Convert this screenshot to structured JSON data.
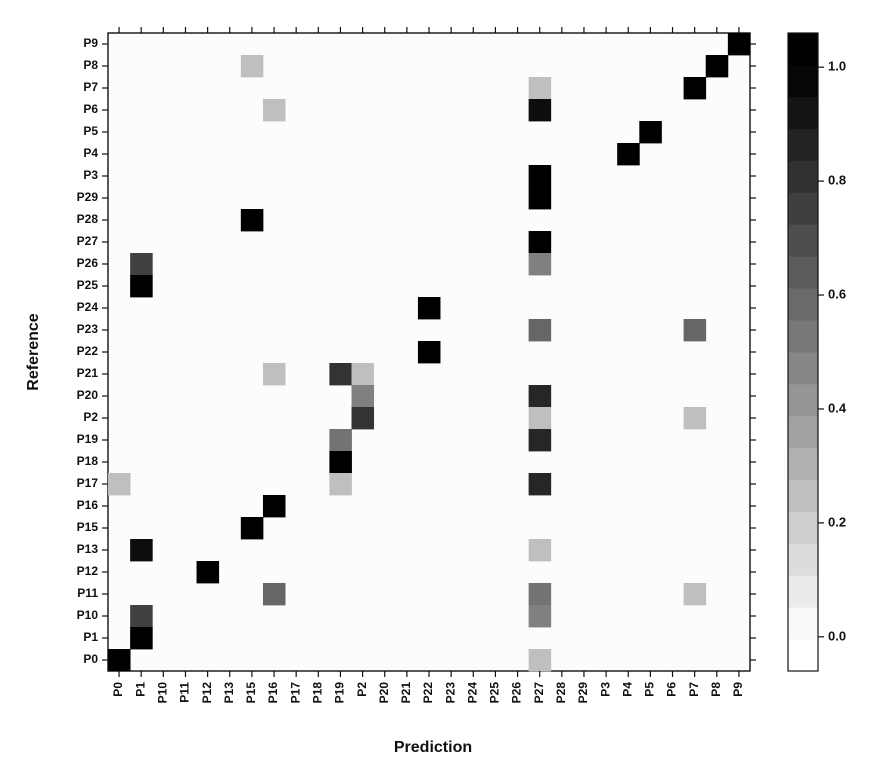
{
  "chart_data": {
    "type": "heatmap",
    "xlabel": "Prediction",
    "ylabel": "Reference",
    "x_categories": [
      "P0",
      "P1",
      "P10",
      "P11",
      "P12",
      "P13",
      "P15",
      "P16",
      "P17",
      "P18",
      "P19",
      "P2",
      "P20",
      "P21",
      "P22",
      "P23",
      "P24",
      "P25",
      "P26",
      "P27",
      "P28",
      "P29",
      "P3",
      "P4",
      "P5",
      "P6",
      "P7",
      "P8",
      "P9"
    ],
    "y_categories": [
      "P0",
      "P1",
      "P10",
      "P11",
      "P12",
      "P13",
      "P15",
      "P16",
      "P17",
      "P18",
      "P19",
      "P2",
      "P20",
      "P21",
      "P22",
      "P23",
      "P24",
      "P25",
      "P26",
      "P27",
      "P28",
      "P29",
      "P3",
      "P4",
      "P5",
      "P6",
      "P7",
      "P8",
      "P9"
    ],
    "colorbar": {
      "range": [
        -0.06,
        1.06
      ],
      "ticks": [
        0.0,
        0.2,
        0.4,
        0.6,
        0.8,
        1.0
      ],
      "tick_labels": [
        "0.0",
        "0.2",
        "0.4",
        "0.6",
        "0.8",
        "1.0"
      ],
      "low_color": "#ffffff",
      "high_color": "#000000"
    },
    "cells": [
      {
        "reference": "P9",
        "prediction": "P9",
        "value": 1.0
      },
      {
        "reference": "P8",
        "prediction": "P15",
        "value": 0.25
      },
      {
        "reference": "P8",
        "prediction": "P8",
        "value": 1.0
      },
      {
        "reference": "P7",
        "prediction": "P27",
        "value": 0.25
      },
      {
        "reference": "P7",
        "prediction": "P7",
        "value": 1.0
      },
      {
        "reference": "P6",
        "prediction": "P16",
        "value": 0.25
      },
      {
        "reference": "P6",
        "prediction": "P27",
        "value": 0.95
      },
      {
        "reference": "P5",
        "prediction": "P5",
        "value": 1.0
      },
      {
        "reference": "P4",
        "prediction": "P4",
        "value": 1.0
      },
      {
        "reference": "P3",
        "prediction": "P27",
        "value": 1.0
      },
      {
        "reference": "P29",
        "prediction": "P27",
        "value": 1.0
      },
      {
        "reference": "P28",
        "prediction": "P15",
        "value": 1.0
      },
      {
        "reference": "P27",
        "prediction": "P27",
        "value": 1.0
      },
      {
        "reference": "P26",
        "prediction": "P1",
        "value": 0.75
      },
      {
        "reference": "P26",
        "prediction": "P27",
        "value": 0.5
      },
      {
        "reference": "P25",
        "prediction": "P1",
        "value": 1.0
      },
      {
        "reference": "P24",
        "prediction": "P22",
        "value": 1.0
      },
      {
        "reference": "P23",
        "prediction": "P27",
        "value": 0.6
      },
      {
        "reference": "P23",
        "prediction": "P7",
        "value": 0.6
      },
      {
        "reference": "P22",
        "prediction": "P22",
        "value": 1.0
      },
      {
        "reference": "P21",
        "prediction": "P16",
        "value": 0.25
      },
      {
        "reference": "P21",
        "prediction": "P19",
        "value": 0.8
      },
      {
        "reference": "P21",
        "prediction": "P2",
        "value": 0.25
      },
      {
        "reference": "P20",
        "prediction": "P2",
        "value": 0.5
      },
      {
        "reference": "P20",
        "prediction": "P27",
        "value": 0.85
      },
      {
        "reference": "P2",
        "prediction": "P2",
        "value": 0.8
      },
      {
        "reference": "P2",
        "prediction": "P27",
        "value": 0.25
      },
      {
        "reference": "P2",
        "prediction": "P7",
        "value": 0.25
      },
      {
        "reference": "P19",
        "prediction": "P19",
        "value": 0.55
      },
      {
        "reference": "P19",
        "prediction": "P27",
        "value": 0.85
      },
      {
        "reference": "P18",
        "prediction": "P19",
        "value": 1.0
      },
      {
        "reference": "P17",
        "prediction": "P0",
        "value": 0.25
      },
      {
        "reference": "P17",
        "prediction": "P19",
        "value": 0.25
      },
      {
        "reference": "P17",
        "prediction": "P27",
        "value": 0.85
      },
      {
        "reference": "P16",
        "prediction": "P16",
        "value": 1.0
      },
      {
        "reference": "P15",
        "prediction": "P15",
        "value": 1.0
      },
      {
        "reference": "P13",
        "prediction": "P1",
        "value": 0.95
      },
      {
        "reference": "P13",
        "prediction": "P27",
        "value": 0.25
      },
      {
        "reference": "P12",
        "prediction": "P12",
        "value": 1.0
      },
      {
        "reference": "P11",
        "prediction": "P16",
        "value": 0.6
      },
      {
        "reference": "P11",
        "prediction": "P27",
        "value": 0.55
      },
      {
        "reference": "P11",
        "prediction": "P7",
        "value": 0.25
      },
      {
        "reference": "P10",
        "prediction": "P1",
        "value": 0.75
      },
      {
        "reference": "P10",
        "prediction": "P27",
        "value": 0.5
      },
      {
        "reference": "P1",
        "prediction": "P1",
        "value": 1.0
      },
      {
        "reference": "P0",
        "prediction": "P0",
        "value": 1.0
      },
      {
        "reference": "P0",
        "prediction": "P27",
        "value": 0.25
      }
    ],
    "legend": "right",
    "grid": false
  }
}
